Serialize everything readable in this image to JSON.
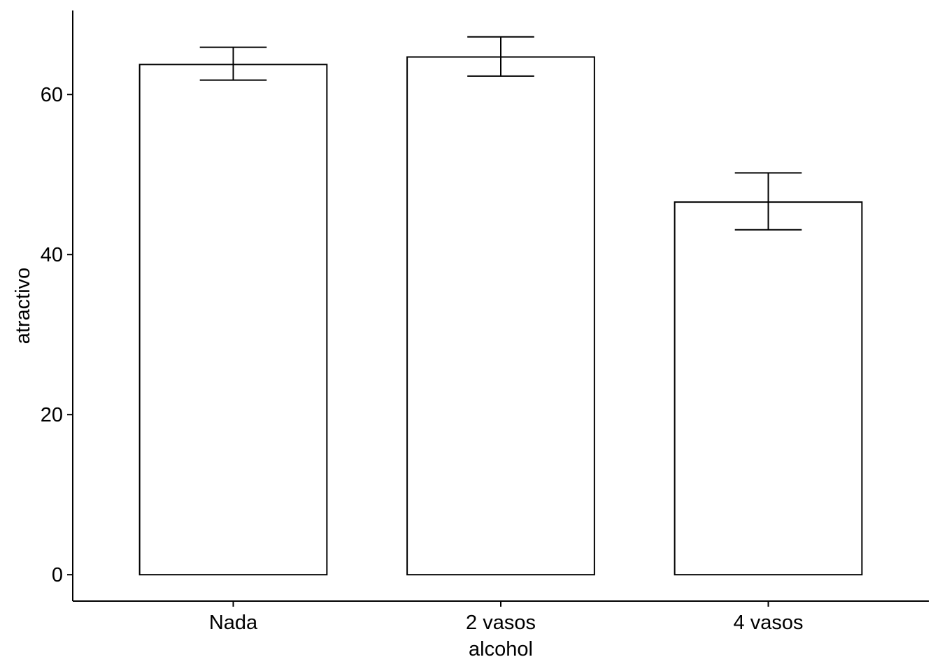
{
  "chart_data": {
    "type": "bar",
    "xlabel": "alcohol",
    "ylabel": "atractivo",
    "categories": [
      "Nada",
      "2 vasos",
      "4 vasos"
    ],
    "values": [
      63.75,
      64.69,
      46.56
    ],
    "error_bars": [
      {
        "low": 61.8,
        "high": 65.9
      },
      {
        "low": 62.3,
        "high": 67.2
      },
      {
        "low": 43.1,
        "high": 50.2
      }
    ],
    "ylim": [
      -3.3,
      70.5
    ],
    "yticks": [
      0,
      20,
      40,
      60
    ],
    "ytick_labels": [
      "0",
      "20",
      "40",
      "60"
    ],
    "grid": false,
    "bar_fill": "#ffffff",
    "bar_stroke": "#000000"
  }
}
